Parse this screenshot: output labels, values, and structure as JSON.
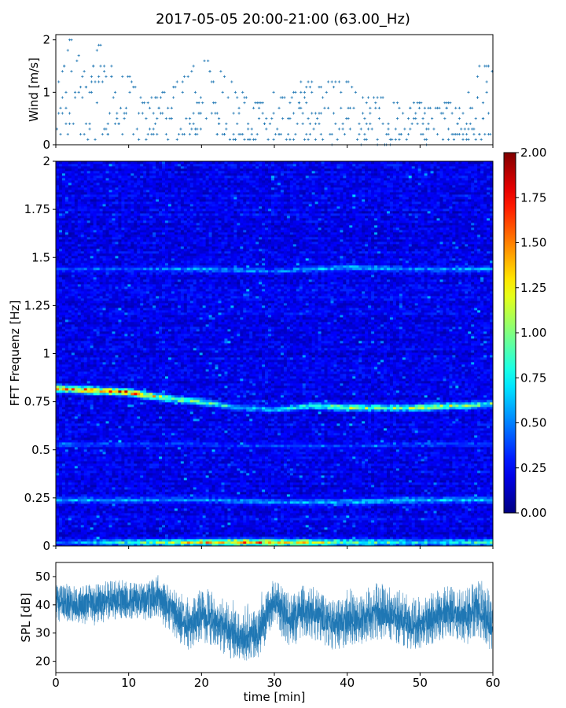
{
  "title": "2017-05-05 20:00-21:00 (63.00_Hz)",
  "colors": {
    "series": "#1f77b4",
    "axis": "#000000"
  },
  "chart_data": [
    {
      "type": "scatter",
      "name": "wind",
      "ylabel": "Wind [m/s]",
      "xlim": [
        0,
        60
      ],
      "ylim": [
        0,
        2.1
      ],
      "yticks": [
        "0",
        "1",
        "2"
      ],
      "marker": "+",
      "color": "#1f77b4",
      "resolution": 0.1,
      "envelope": {
        "x": [
          0,
          2,
          4,
          6,
          8,
          10,
          12,
          14,
          16,
          18,
          20,
          22,
          24,
          26,
          28,
          30,
          32,
          34,
          36,
          38,
          40,
          42,
          44,
          46,
          48,
          50,
          52,
          54,
          56,
          58,
          60
        ],
        "max": [
          1.0,
          2.0,
          1.5,
          1.9,
          1.4,
          1.3,
          0.8,
          0.9,
          1.1,
          1.3,
          1.7,
          1.4,
          1.3,
          0.9,
          0.8,
          1.0,
          0.8,
          1.3,
          1.1,
          1.3,
          1.2,
          0.9,
          0.9,
          0.8,
          0.7,
          0.8,
          0.7,
          0.8,
          0.7,
          1.6,
          1.4
        ],
        "min": [
          0.3,
          0.1,
          0.1,
          0.1,
          0.2,
          0.1,
          0.1,
          0.1,
          0.1,
          0.2,
          0.2,
          0.2,
          0.1,
          0.1,
          0.0,
          0.1,
          0.1,
          0.1,
          0.1,
          0.0,
          0.1,
          0.0,
          0.0,
          0.0,
          0.1,
          0.0,
          0.1,
          0.1,
          0.1,
          0.1,
          0.2
        ]
      }
    },
    {
      "type": "heatmap",
      "name": "spectrogram",
      "ylabel": "FFT Frequenz [Hz]",
      "xlim": [
        0,
        60
      ],
      "ylim": [
        0,
        2
      ],
      "yticks": [
        "0",
        "0.25",
        "0.5",
        "0.75",
        "1",
        "1.25",
        "1.5",
        "1.75",
        "2"
      ],
      "colormap": "jet",
      "clim": [
        0,
        2
      ],
      "colorbar_ticks": [
        "0.00",
        "0.25",
        "0.50",
        "0.75",
        "1.00",
        "1.25",
        "1.50",
        "1.75",
        "2.00"
      ],
      "background_level": 0.22,
      "bands": [
        {
          "x": [
            0,
            5,
            10,
            15,
            20,
            25,
            30,
            35,
            40,
            45,
            50,
            55,
            60
          ],
          "freq": [
            0.82,
            0.81,
            0.8,
            0.77,
            0.75,
            0.72,
            0.71,
            0.73,
            0.72,
            0.72,
            0.72,
            0.73,
            0.74
          ],
          "peak": [
            1.7,
            1.8,
            1.9,
            1.3,
            1.1,
            0.8,
            0.8,
            1.0,
            1.3,
            1.1,
            1.4,
            1.3,
            1.1
          ]
        },
        {
          "x": [
            0,
            10,
            20,
            30,
            40,
            50,
            60
          ],
          "freq": [
            0.24,
            0.24,
            0.24,
            0.23,
            0.23,
            0.24,
            0.24
          ],
          "peak": [
            0.7,
            0.7,
            0.6,
            0.7,
            0.8,
            0.8,
            0.7
          ]
        },
        {
          "x": [
            0,
            10,
            20,
            30,
            40,
            50,
            60
          ],
          "freq": [
            0.02,
            0.02,
            0.02,
            0.02,
            0.02,
            0.02,
            0.02
          ],
          "peak": [
            0.5,
            1.0,
            1.6,
            1.8,
            1.2,
            0.9,
            1.0
          ]
        },
        {
          "x": [
            0,
            10,
            20,
            30,
            40,
            50,
            60
          ],
          "freq": [
            1.44,
            1.44,
            1.44,
            1.43,
            1.45,
            1.44,
            1.44
          ],
          "peak": [
            0.5,
            0.5,
            0.7,
            0.6,
            0.8,
            0.6,
            0.7
          ]
        },
        {
          "x": [
            0,
            10,
            20,
            30,
            40,
            50,
            60
          ],
          "freq": [
            0.53,
            0.53,
            0.53,
            0.52,
            0.52,
            0.53,
            0.53
          ],
          "peak": [
            0.6,
            0.45,
            0.45,
            0.45,
            0.45,
            0.5,
            0.45
          ]
        }
      ]
    },
    {
      "type": "line",
      "name": "spl",
      "xlabel": "time [min]",
      "ylabel": "SPL [dB]",
      "xlim": [
        0,
        60
      ],
      "ylim": [
        16,
        55
      ],
      "yticks": [
        "20",
        "30",
        "40",
        "50"
      ],
      "xticks": [
        "0",
        "10",
        "20",
        "30",
        "40",
        "50",
        "60"
      ],
      "color": "#1f77b4",
      "envelope": {
        "x": [
          0,
          3,
          6,
          9,
          12,
          14,
          16,
          18,
          20,
          22,
          24,
          26,
          28,
          30,
          32,
          34,
          36,
          38,
          40,
          42,
          44,
          46,
          48,
          50,
          52,
          54,
          56,
          58,
          60
        ],
        "mean": [
          41,
          40,
          41,
          42,
          41,
          43,
          38,
          32,
          36,
          34,
          30,
          28,
          30,
          42,
          34,
          38,
          36,
          33,
          34,
          35,
          37,
          36,
          34,
          33,
          36,
          38,
          36,
          39,
          32
        ],
        "max": [
          48,
          47,
          48,
          50,
          49,
          51,
          46,
          44,
          46,
          45,
          42,
          40,
          44,
          50,
          44,
          48,
          46,
          44,
          46,
          46,
          48,
          47,
          46,
          44,
          46,
          48,
          45,
          50,
          44
        ],
        "min": [
          34,
          33,
          32,
          35,
          34,
          35,
          28,
          25,
          26,
          25,
          21,
          22,
          24,
          33,
          24,
          28,
          26,
          24,
          25,
          26,
          27,
          26,
          24,
          25,
          26,
          28,
          25,
          29,
          22
        ]
      }
    }
  ]
}
